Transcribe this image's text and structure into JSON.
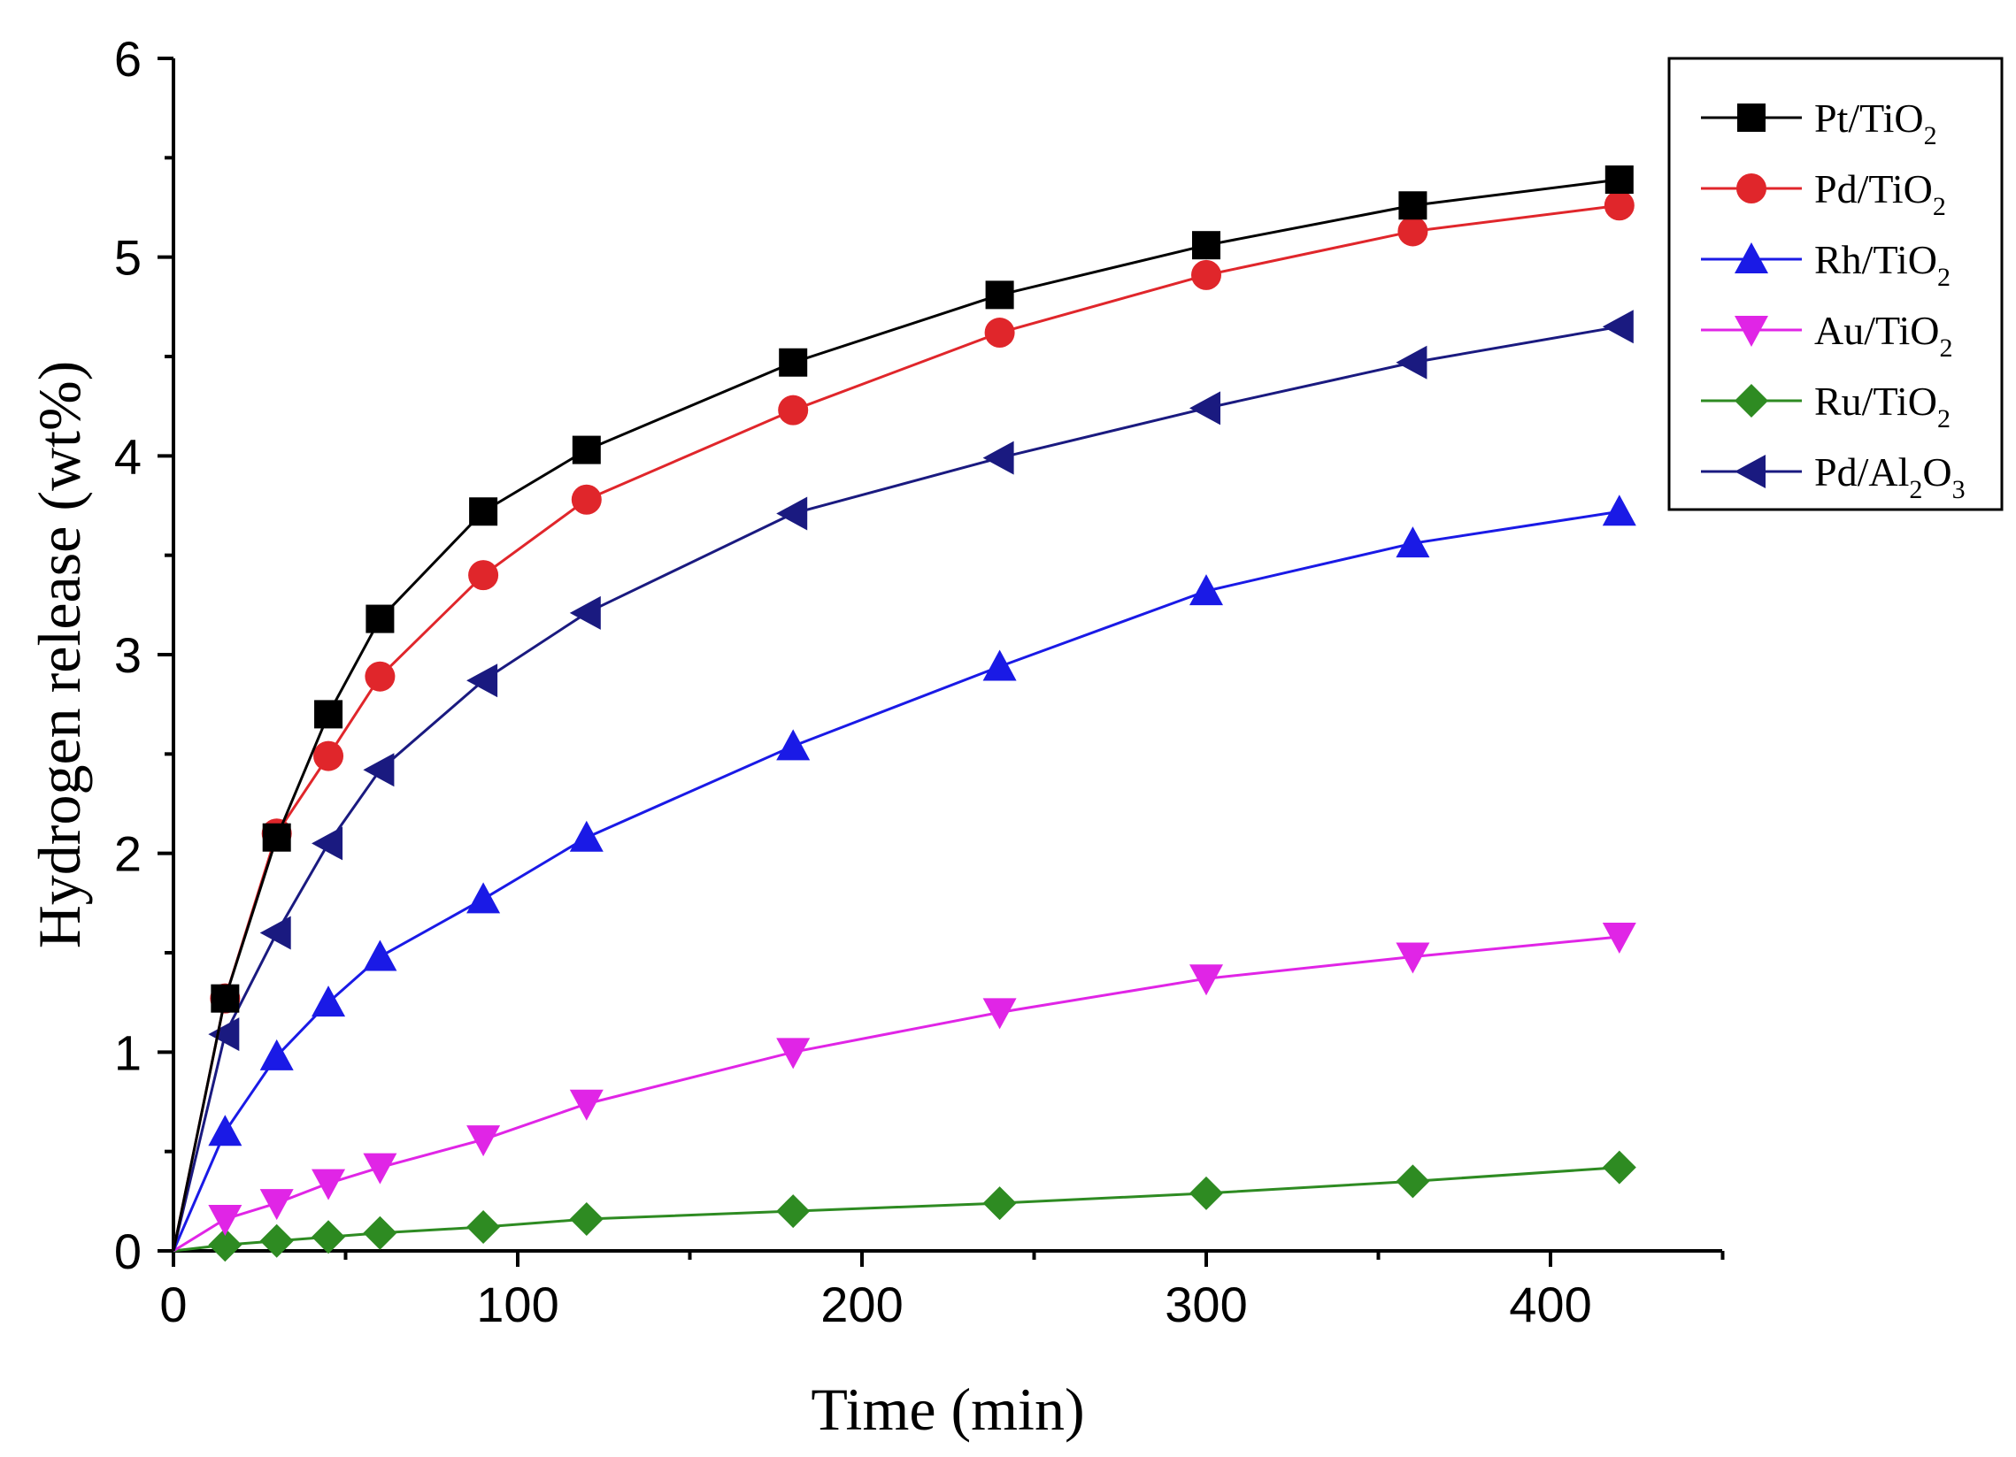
{
  "chart_data": {
    "type": "line",
    "title": "",
    "xlabel": "Time (min)",
    "ylabel": "Hydrogen release (wt%)",
    "xlim": [
      0,
      450
    ],
    "ylim": [
      0,
      6
    ],
    "xticks": [
      0,
      100,
      200,
      300,
      400
    ],
    "xtick_labels": [
      "0",
      "100",
      "200",
      "300",
      "400"
    ],
    "yticks": [
      0,
      1,
      2,
      3,
      4,
      5,
      6
    ],
    "ytick_labels": [
      "0",
      "1",
      "2",
      "3",
      "4",
      "5",
      "6"
    ],
    "grid": false,
    "legend_position": "top-right",
    "x": [
      0,
      15,
      30,
      45,
      60,
      90,
      120,
      180,
      240,
      300,
      360,
      420
    ],
    "series": [
      {
        "name": "Pt/TiO2",
        "label_main": "Pt/TiO",
        "label_sub": "2",
        "label_tail": "",
        "color": "#000000",
        "marker": "square",
        "values": [
          0,
          1.27,
          2.08,
          2.7,
          3.18,
          3.72,
          4.03,
          4.47,
          4.81,
          5.06,
          5.26,
          5.39
        ]
      },
      {
        "name": "Pd/TiO2",
        "label_main": "Pd/TiO",
        "label_sub": "2",
        "label_tail": "",
        "color": "#e0262b",
        "marker": "circle",
        "values": [
          0,
          1.27,
          2.1,
          2.49,
          2.89,
          3.4,
          3.78,
          4.23,
          4.62,
          4.91,
          5.13,
          5.26
        ]
      },
      {
        "name": "Rh/TiO2",
        "label_main": "Rh/TiO",
        "label_sub": "2",
        "label_tail": "",
        "color": "#1a1ae6",
        "marker": "triangle-up",
        "values": [
          0,
          0.6,
          0.98,
          1.25,
          1.48,
          1.77,
          2.08,
          2.54,
          2.94,
          3.32,
          3.56,
          3.72
        ]
      },
      {
        "name": "Au/TiO2",
        "label_main": "Au/TiO",
        "label_sub": "2",
        "label_tail": "",
        "color": "#e025e6",
        "marker": "triangle-down",
        "values": [
          0,
          0.16,
          0.24,
          0.34,
          0.42,
          0.56,
          0.74,
          1.0,
          1.2,
          1.37,
          1.48,
          1.58
        ]
      },
      {
        "name": "Ru/TiO2",
        "label_main": "Ru/TiO",
        "label_sub": "2",
        "label_tail": "",
        "color": "#2e8b22",
        "marker": "diamond",
        "values": [
          0,
          0.03,
          0.05,
          0.07,
          0.09,
          0.12,
          0.16,
          0.2,
          0.24,
          0.29,
          0.35,
          0.42
        ]
      },
      {
        "name": "Pd/Al2O3",
        "label_main": "Pd/Al",
        "label_sub": "2",
        "label_tail": "O",
        "label_sub2": "3",
        "color": "#1a1a80",
        "marker": "triangle-left",
        "values": [
          0,
          1.09,
          1.6,
          2.05,
          2.42,
          2.87,
          3.21,
          3.71,
          3.99,
          4.24,
          4.47,
          4.65
        ]
      }
    ]
  }
}
